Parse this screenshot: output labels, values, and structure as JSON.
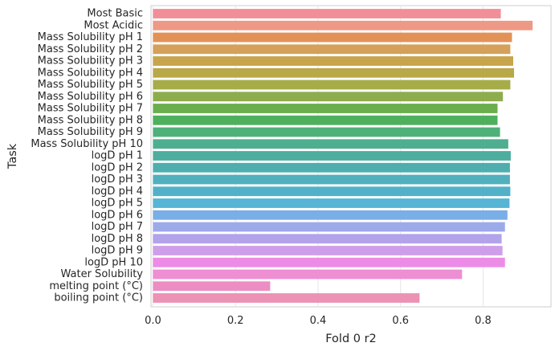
{
  "chart_data": {
    "type": "bar",
    "orientation": "horizontal",
    "xlabel": "Fold 0 r2",
    "ylabel": "Task",
    "xlim": [
      0,
      0.965
    ],
    "xticks": [
      0.0,
      0.2,
      0.4,
      0.6,
      0.8
    ],
    "xtick_labels": [
      "0.0",
      "0.2",
      "0.4",
      "0.6",
      "0.8"
    ],
    "grid": true,
    "categories": [
      "Most Basic",
      "Most Acidic",
      "Mass Solubility pH 1",
      "Mass Solubility pH 2",
      "Mass Solubility pH 3",
      "Mass Solubility pH 4",
      "Mass Solubility pH 5",
      "Mass Solubility pH 6",
      "Mass Solubility pH 7",
      "Mass Solubility pH 8",
      "Mass Solubility pH 9",
      "Mass Solubility pH 10",
      "logD pH 1",
      "logD pH 2",
      "logD pH 3",
      "logD pH 4",
      "logD pH 5",
      "logD pH 6",
      "logD pH 7",
      "logD pH 8",
      "logD pH 9",
      "logD pH 10",
      "Water Solubility",
      "melting point (°C)",
      "boiling point (°C)"
    ],
    "values": [
      0.843,
      0.92,
      0.87,
      0.866,
      0.873,
      0.875,
      0.866,
      0.848,
      0.835,
      0.835,
      0.841,
      0.861,
      0.867,
      0.865,
      0.865,
      0.866,
      0.864,
      0.859,
      0.853,
      0.845,
      0.847,
      0.853,
      0.749,
      0.284,
      0.646
    ],
    "colors": [
      "#f28e98",
      "#ee9985",
      "#e39257",
      "#d5a05a",
      "#c8a44b",
      "#b8a848",
      "#a6ac48",
      "#8dad4c",
      "#6aae4d",
      "#4eb05d",
      "#4fb07a",
      "#4eae90",
      "#4dad9e",
      "#4eaeae",
      "#51b0bd",
      "#52b1c9",
      "#56b4d4",
      "#79aee6",
      "#9daaea",
      "#b3a3ea",
      "#cf9ee9",
      "#ec8ce6",
      "#ee8ed3",
      "#ec8ec3",
      "#ec92b4"
    ]
  }
}
